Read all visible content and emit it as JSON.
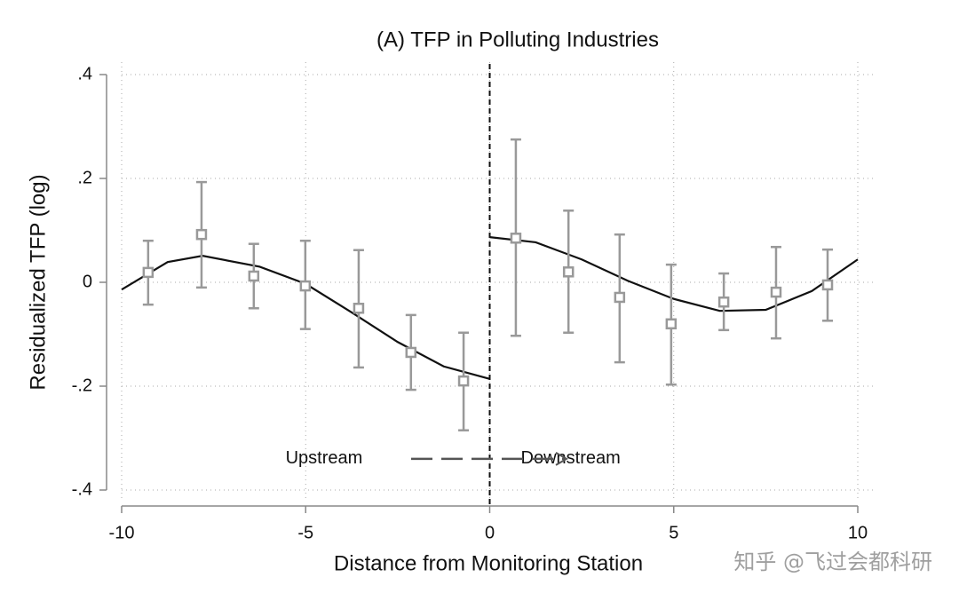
{
  "chart_data": {
    "type": "scatter",
    "title": "(A) TFP in Polluting Industries",
    "x_label": "Distance from Monitoring Station",
    "y_label": "Residualized TFP (log)",
    "x": [
      -9.28,
      -7.83,
      -6.41,
      -5.01,
      -3.56,
      -2.14,
      -0.71,
      0.71,
      2.14,
      3.53,
      4.93,
      6.36,
      7.78,
      9.18
    ],
    "values": [
      0.019,
      0.092,
      0.012,
      -0.007,
      -0.05,
      -0.135,
      -0.19,
      0.085,
      0.02,
      -0.029,
      -0.08,
      -0.038,
      -0.019,
      -0.005
    ],
    "ci_low": [
      -0.043,
      -0.01,
      -0.05,
      -0.09,
      -0.164,
      -0.207,
      -0.285,
      -0.103,
      -0.097,
      -0.154,
      -0.197,
      -0.092,
      -0.108,
      -0.074
    ],
    "ci_high": [
      0.08,
      0.193,
      0.074,
      0.08,
      0.062,
      -0.063,
      -0.097,
      0.275,
      0.138,
      0.092,
      0.034,
      0.017,
      0.068,
      0.063
    ],
    "color": "#999999",
    "fits": [
      {
        "x": [
          -10,
          -8.75,
          -7.8,
          -6.25,
          -5,
          -3.75,
          -2.5,
          -1.25,
          0
        ],
        "values": [
          -0.014,
          0.039,
          0.051,
          0.03,
          -0.003,
          -0.058,
          -0.115,
          -0.162,
          -0.186
        ],
        "color": "#111111"
      },
      {
        "x": [
          0,
          1.25,
          2.5,
          3.75,
          5,
          6.25,
          7.5,
          8.75,
          10
        ],
        "values": [
          0.087,
          0.077,
          0.044,
          0.003,
          -0.032,
          -0.055,
          -0.053,
          -0.017,
          0.044
        ],
        "color": "#111111"
      }
    ],
    "vline": 0,
    "annotations": [
      {
        "text": "Upstream",
        "x": -4.5,
        "y": -0.34
      },
      {
        "text": "Downstream",
        "x": 2.2,
        "y": -0.34
      }
    ],
    "xlim": [
      -10,
      10
    ],
    "ylim": [
      -0.4,
      0.4
    ],
    "xticks": [
      -10,
      -5,
      0,
      5,
      10
    ],
    "yticks": [
      {
        "value": -0.4,
        "label": "-.4"
      },
      {
        "value": -0.2,
        "label": "-.2"
      },
      0,
      {
        "value": 0.2,
        "label": ".2"
      },
      {
        "value": 0.4,
        "label": ".4"
      }
    ],
    "grid": true
  },
  "watermark": "知乎 @飞过会都科研"
}
